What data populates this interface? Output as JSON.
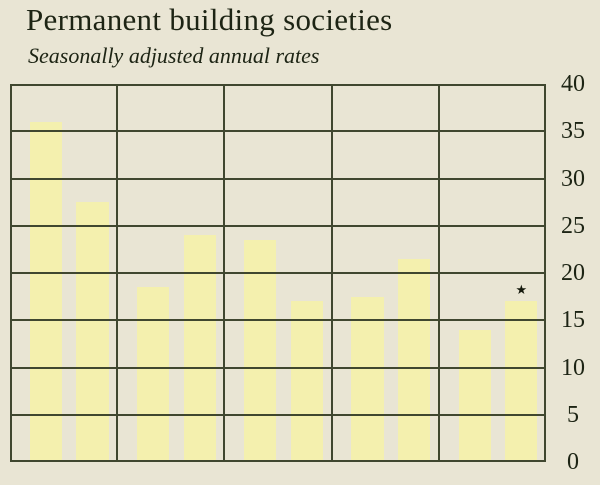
{
  "chart_data": {
    "type": "bar",
    "title": "Permanent building societies",
    "subtitle": "Seasonally adjusted annual rates",
    "ylim": [
      0,
      40
    ],
    "yticks": [
      0,
      5,
      10,
      15,
      20,
      25,
      30,
      35,
      40
    ],
    "ytick_labels": [
      "0",
      "5",
      "10",
      "15",
      "20",
      "25",
      "30",
      "35",
      "40"
    ],
    "y_axis_side": "right",
    "grid": true,
    "bars_per_group": 2,
    "groups": [
      {
        "values": [
          36,
          27.5
        ]
      },
      {
        "values": [
          18.5,
          24
        ]
      },
      {
        "values": [
          23.5,
          17
        ]
      },
      {
        "values": [
          17.5,
          21.5
        ]
      },
      {
        "values": [
          14,
          17
        ]
      }
    ],
    "values_flat": [
      36,
      27.5,
      18.5,
      24,
      23.5,
      17,
      17.5,
      21.5,
      14,
      17
    ],
    "annotations": [
      {
        "group_index": 4,
        "bar_index": 1,
        "symbol": "★"
      }
    ]
  },
  "colors": {
    "background": "#e9e5d4",
    "bar_fill": "#f4f0ae",
    "grid_line": "#40472f",
    "text": "#1d2414"
  }
}
